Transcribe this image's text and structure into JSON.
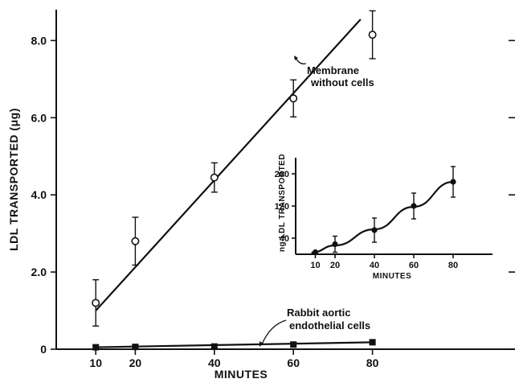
{
  "chart_data": [
    {
      "type": "line",
      "title": "",
      "xlabel": "MINUTES",
      "ylabel": "LDL TRANSPORTED (μg)",
      "xlim": [
        0,
        100
      ],
      "ylim": [
        0,
        8.8
      ],
      "xticks": [
        "10",
        "20",
        "40",
        "60",
        "80"
      ],
      "yticks": [
        "0",
        "2.0",
        "4.0",
        "6.0",
        "8.0"
      ],
      "grid": false,
      "series": [
        {
          "name": "Membrane without cells",
          "marker": "open-circle",
          "points": [
            {
              "x": 10,
              "y": 1.2,
              "err": 0.6
            },
            {
              "x": 20,
              "y": 2.8,
              "err": 0.62
            },
            {
              "x": 40,
              "y": 4.45,
              "err": 0.38
            },
            {
              "x": 60,
              "y": 6.5,
              "err": 0.48
            },
            {
              "x": 80,
              "y": 8.15,
              "err": 0.62
            }
          ],
          "fit": {
            "x": [
              10,
              77
            ],
            "y": [
              1.0,
              8.55
            ]
          }
        },
        {
          "name": "Rabbit aortic endothelial cells",
          "marker": "filled-square",
          "points": [
            {
              "x": 10,
              "y": 0.05,
              "err": 0.04
            },
            {
              "x": 20,
              "y": 0.06,
              "err": 0.04
            },
            {
              "x": 40,
              "y": 0.07,
              "err": 0.05
            },
            {
              "x": 60,
              "y": 0.12,
              "err": 0.06
            },
            {
              "x": 80,
              "y": 0.18,
              "err": 0.05
            }
          ],
          "fit": {
            "x": [
              10,
              80
            ],
            "y": [
              0.05,
              0.18
            ]
          }
        }
      ]
    },
    {
      "type": "line",
      "title": "",
      "xlabel": "MINUTES",
      "ylabel": "ng LDL TRANSPORTED",
      "xlim": [
        0,
        100
      ],
      "ylim": [
        0,
        240
      ],
      "xticks": [
        "10",
        "20",
        "40",
        "60",
        "80"
      ],
      "yticks": [
        "40",
        "120",
        "200"
      ],
      "grid": false,
      "series": [
        {
          "marker": "filled-circle",
          "points": [
            {
              "x": 10,
              "y": 5,
              "err": 0
            },
            {
              "x": 20,
              "y": 25,
              "err": 20
            },
            {
              "x": 40,
              "y": 60,
              "err": 30
            },
            {
              "x": 60,
              "y": 120,
              "err": 32
            },
            {
              "x": 80,
              "y": 180,
              "err": 38
            }
          ],
          "fit": {
            "x": [
              8,
              20,
              40,
              60,
              80
            ],
            "y": [
              4,
              22,
              62,
              118,
              180
            ]
          }
        }
      ]
    }
  ]
}
